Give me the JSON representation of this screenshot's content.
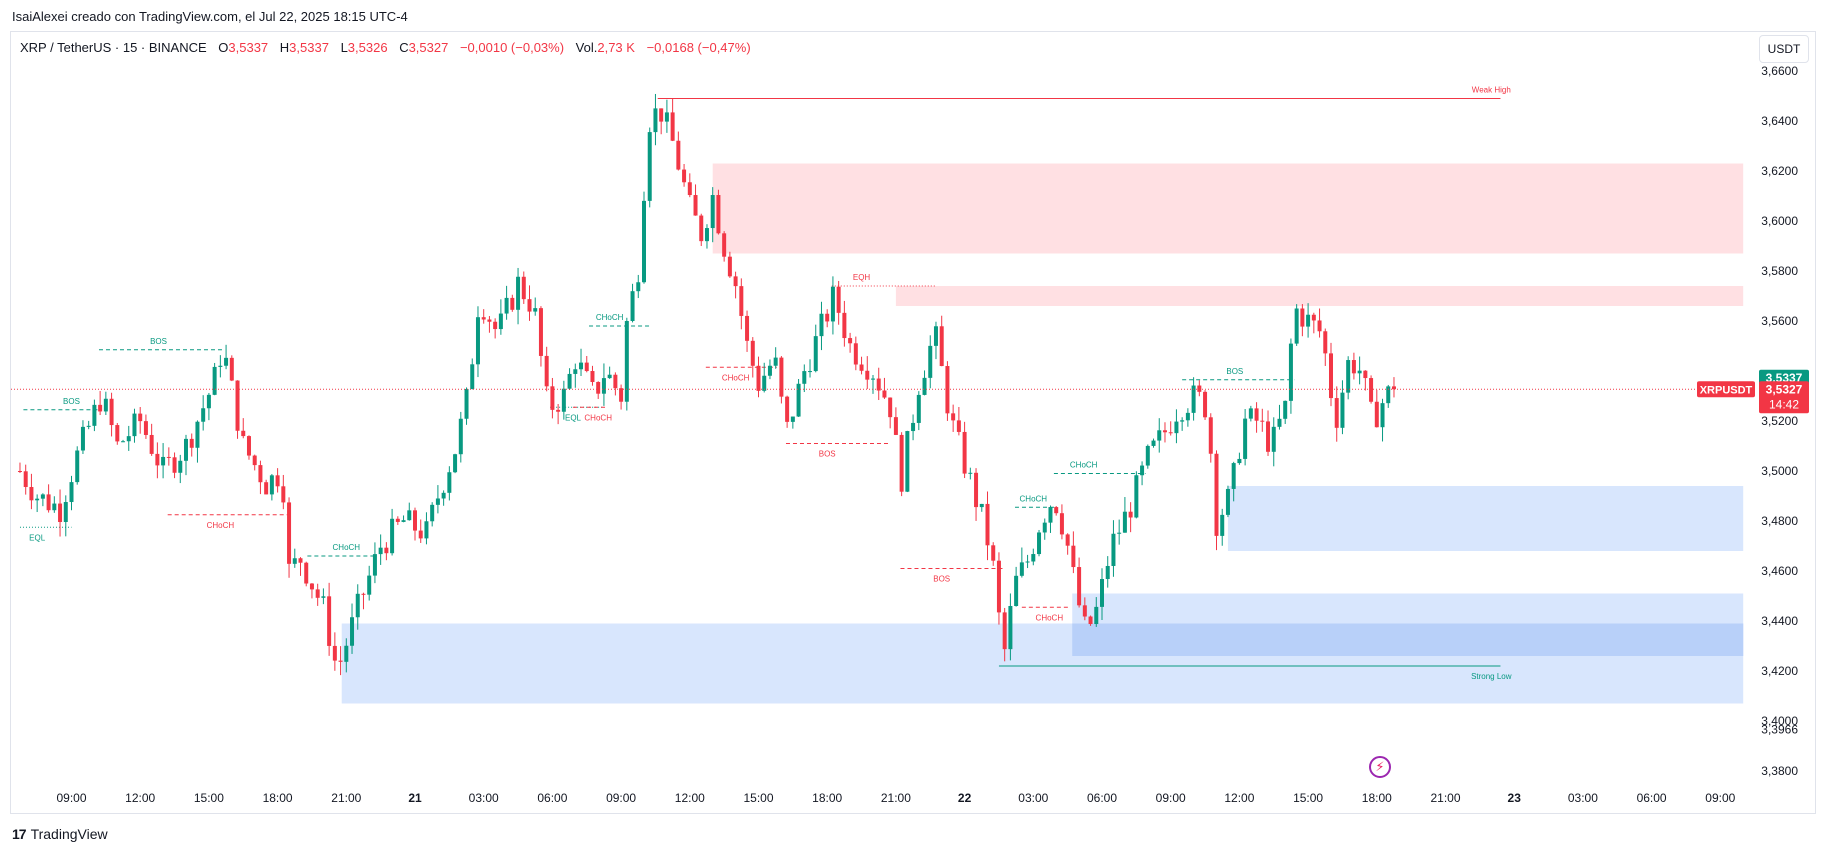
{
  "header": {
    "caption": "IsaiAlexei creado con TradingView.com, el Jul 22, 2025 18:15 UTC-4"
  },
  "legend": {
    "symbol": "XRP / TetherUS · 15 · BINANCE",
    "o_label": "O",
    "o_value": "3,5337",
    "h_label": "H",
    "h_value": "3,5337",
    "l_label": "L",
    "l_value": "3,5326",
    "c_label": "C",
    "c_value": "3,5327",
    "change": "−0,0010 (−0,03%)",
    "vol_label": "Vol.",
    "vol_value": "2,73 K",
    "vol_change": "−0,0168 (−0,47%)"
  },
  "currency_button": "USDT",
  "footer": {
    "logo": "17",
    "brand": "TradingView"
  },
  "colors": {
    "up": "#089981",
    "down": "#f23645",
    "supply_zone": "#ffe0e3",
    "demand_zone": "#d8e6fd",
    "demand_overlap": "#b8d0f9",
    "price_line": "#f23645",
    "axis_text": "#131722"
  },
  "chart_data": {
    "type": "candlestick",
    "title": "",
    "ylim": [
      3.375,
      3.6725
    ],
    "y_ticks": [
      "3,6600",
      "3,6400",
      "3,6200",
      "3,6000",
      "3,5800",
      "3,5600",
      "3,5200",
      "3,5000",
      "3,4800",
      "3,4600",
      "3,4400",
      "3,4200",
      "3,4000",
      "3,3966",
      "3,3800"
    ],
    "y_tick_values": [
      3.66,
      3.64,
      3.62,
      3.6,
      3.58,
      3.56,
      3.52,
      3.5,
      3.48,
      3.46,
      3.44,
      3.42,
      3.4,
      3.3966,
      3.38
    ],
    "x_ticks": [
      "09:00",
      "12:00",
      "15:00",
      "18:00",
      "21:00",
      "21",
      "03:00",
      "06:00",
      "09:00",
      "12:00",
      "15:00",
      "18:00",
      "21:00",
      "22",
      "03:00",
      "06:00",
      "09:00",
      "12:00",
      "15:00",
      "18:00",
      "21:00",
      "23",
      "03:00",
      "06:00",
      "09:00"
    ],
    "x_tick_hours": [
      9,
      12,
      15,
      18,
      21,
      24,
      27,
      30,
      33,
      36,
      39,
      42,
      45,
      48,
      51,
      54,
      57,
      60,
      63,
      66,
      69,
      72,
      75,
      78,
      81
    ],
    "candles_start_hour": 6.75,
    "candle_interval_hours": 0.25,
    "close_waypoints": [
      [
        6.75,
        3.5
      ],
      [
        7.5,
        3.49
      ],
      [
        8.5,
        3.485
      ],
      [
        9.2,
        3.505
      ],
      [
        10.3,
        3.53
      ],
      [
        11.0,
        3.51
      ],
      [
        12.0,
        3.52
      ],
      [
        13.0,
        3.5
      ],
      [
        14.0,
        3.51
      ],
      [
        15.2,
        3.535
      ],
      [
        15.6,
        3.55
      ],
      [
        16.5,
        3.51
      ],
      [
        17.5,
        3.495
      ],
      [
        18.2,
        3.5
      ],
      [
        18.5,
        3.46
      ],
      [
        19.0,
        3.465
      ],
      [
        20.0,
        3.445
      ],
      [
        20.6,
        3.42
      ],
      [
        21.5,
        3.445
      ],
      [
        22.5,
        3.47
      ],
      [
        23.5,
        3.48
      ],
      [
        24.5,
        3.475
      ],
      [
        25.0,
        3.49
      ],
      [
        25.8,
        3.51
      ],
      [
        26.3,
        3.53
      ],
      [
        26.8,
        3.57
      ],
      [
        27.6,
        3.555
      ],
      [
        28.5,
        3.575
      ],
      [
        29.2,
        3.565
      ],
      [
        29.8,
        3.525
      ],
      [
        30.5,
        3.53
      ],
      [
        31.0,
        3.545
      ],
      [
        31.8,
        3.53
      ],
      [
        32.3,
        3.54
      ],
      [
        33.0,
        3.53
      ],
      [
        33.3,
        3.565
      ],
      [
        33.7,
        3.575
      ],
      [
        34.2,
        3.64
      ],
      [
        34.7,
        3.645
      ],
      [
        35.3,
        3.63
      ],
      [
        36.0,
        3.605
      ],
      [
        36.5,
        3.595
      ],
      [
        37.0,
        3.61
      ],
      [
        37.5,
        3.59
      ],
      [
        38.0,
        3.575
      ],
      [
        38.5,
        3.55
      ],
      [
        39.0,
        3.535
      ],
      [
        39.7,
        3.545
      ],
      [
        40.2,
        3.515
      ],
      [
        41.0,
        3.54
      ],
      [
        42.3,
        3.57
      ],
      [
        43.0,
        3.55
      ],
      [
        44.0,
        3.54
      ],
      [
        44.8,
        3.525
      ],
      [
        45.2,
        3.495
      ],
      [
        46.0,
        3.535
      ],
      [
        46.7,
        3.555
      ],
      [
        47.4,
        3.52
      ],
      [
        48.1,
        3.5
      ],
      [
        48.8,
        3.48
      ],
      [
        49.2,
        3.465
      ],
      [
        49.7,
        3.425
      ],
      [
        50.2,
        3.455
      ],
      [
        50.8,
        3.465
      ],
      [
        51.3,
        3.48
      ],
      [
        51.9,
        3.49
      ],
      [
        52.4,
        3.475
      ],
      [
        52.9,
        3.45
      ],
      [
        53.3,
        3.435
      ],
      [
        53.8,
        3.445
      ],
      [
        54.4,
        3.47
      ],
      [
        55.2,
        3.485
      ],
      [
        56.0,
        3.505
      ],
      [
        56.7,
        3.515
      ],
      [
        57.3,
        3.525
      ],
      [
        58.1,
        3.53
      ],
      [
        58.6,
        3.525
      ],
      [
        59.0,
        3.48
      ],
      [
        59.6,
        3.49
      ],
      [
        60.2,
        3.52
      ],
      [
        60.8,
        3.52
      ],
      [
        61.4,
        3.51
      ],
      [
        62.0,
        3.525
      ],
      [
        62.4,
        3.565
      ],
      [
        63.0,
        3.56
      ],
      [
        63.6,
        3.555
      ],
      [
        64.2,
        3.52
      ],
      [
        64.8,
        3.545
      ],
      [
        65.3,
        3.54
      ],
      [
        65.8,
        3.52
      ],
      [
        66.4,
        3.53
      ],
      [
        66.75,
        3.5327
      ]
    ],
    "last_price": "3,5327",
    "last_price_high": "3,5337",
    "countdown": "14:42",
    "symbol_label": "XRPUSDT",
    "zones": [
      {
        "kind": "supply",
        "from_hour": 37.0,
        "to_hour": 82.0,
        "low": 3.587,
        "high": 3.623
      },
      {
        "kind": "supply",
        "from_hour": 45.0,
        "to_hour": 82.0,
        "low": 3.566,
        "high": 3.574
      },
      {
        "kind": "demand",
        "from_hour": 59.5,
        "to_hour": 82.0,
        "low": 3.468,
        "high": 3.494
      },
      {
        "kind": "demand",
        "from_hour": 52.7,
        "to_hour": 82.0,
        "low": 3.426,
        "high": 3.451
      },
      {
        "kind": "demand",
        "from_hour": 20.8,
        "to_hour": 82.0,
        "low": 3.407,
        "high": 3.439
      },
      {
        "kind": "demand_overlap",
        "from_hour": 52.7,
        "to_hour": 82.0,
        "low": 3.426,
        "high": 3.439
      }
    ],
    "structure_lines": [
      {
        "label": "Weak High",
        "color": "#f23645",
        "style": "solid",
        "y": 3.649,
        "from_hour": 34.6,
        "to_hour": 71.4,
        "label_hour": 71.0,
        "label_pos": "above"
      },
      {
        "label": "Strong Low",
        "color": "#089981",
        "style": "solid",
        "y": 3.422,
        "from_hour": 49.5,
        "to_hour": 71.4,
        "label_hour": 71.0,
        "label_pos": "below"
      },
      {
        "label": "EQL",
        "color": "#089981",
        "style": "dotted",
        "y": 3.4775,
        "from_hour": 6.75,
        "to_hour": 9.0,
        "label_hour": 7.5,
        "label_pos": "below"
      },
      {
        "label": "BOS",
        "color": "#089981",
        "style": "dashed",
        "y": 3.5245,
        "from_hour": 6.9,
        "to_hour": 10.2,
        "label_hour": 9.0,
        "label_pos": "above"
      },
      {
        "label": "BOS",
        "color": "#089981",
        "style": "dashed",
        "y": 3.5485,
        "from_hour": 10.2,
        "to_hour": 15.7,
        "label_hour": 12.8,
        "label_pos": "above"
      },
      {
        "label": "CHoCH",
        "color": "#f23645",
        "style": "dashed",
        "y": 3.4825,
        "from_hour": 13.2,
        "to_hour": 18.7,
        "label_hour": 15.5,
        "label_pos": "below"
      },
      {
        "label": "CHoCH",
        "color": "#089981",
        "style": "dashed",
        "y": 3.466,
        "from_hour": 19.3,
        "to_hour": 22.3,
        "label_hour": 21.0,
        "label_pos": "above"
      },
      {
        "label": "EQL",
        "color": "#089981",
        "style": "dotted",
        "y": 3.5255,
        "from_hour": 29.9,
        "to_hour": 32.2,
        "label_hour": 30.9,
        "label_pos": "below"
      },
      {
        "label": "CHoCH",
        "color": "#f23645",
        "style": "dashed",
        "y": 3.5255,
        "from_hour": 30.9,
        "to_hour": 32.3,
        "label_hour": 32.0,
        "label_pos": "below"
      },
      {
        "label": "CHoCH",
        "color": "#089981",
        "style": "dashed",
        "y": 3.558,
        "from_hour": 31.6,
        "to_hour": 34.3,
        "label_hour": 32.5,
        "label_pos": "above"
      },
      {
        "label": "CHoCH",
        "color": "#f23645",
        "style": "dashed",
        "y": 3.5415,
        "from_hour": 36.7,
        "to_hour": 39.8,
        "label_hour": 38.0,
        "label_pos": "below"
      },
      {
        "label": "EQH",
        "color": "#f23645",
        "style": "dotted",
        "y": 3.574,
        "from_hour": 42.2,
        "to_hour": 46.7,
        "label_hour": 43.5,
        "label_pos": "above"
      },
      {
        "label": "BOS",
        "color": "#f23645",
        "style": "dashed",
        "y": 3.511,
        "from_hour": 40.2,
        "to_hour": 44.7,
        "label_hour": 42.0,
        "label_pos": "below"
      },
      {
        "label": "BOS",
        "color": "#f23645",
        "style": "dashed",
        "y": 3.461,
        "from_hour": 45.2,
        "to_hour": 49.7,
        "label_hour": 47.0,
        "label_pos": "below"
      },
      {
        "label": "CHoCH",
        "color": "#089981",
        "style": "dashed",
        "y": 3.4855,
        "from_hour": 50.2,
        "to_hour": 52.0,
        "label_hour": 51.0,
        "label_pos": "above"
      },
      {
        "label": "CHoCH",
        "color": "#f23645",
        "style": "dashed",
        "y": 3.4455,
        "from_hour": 50.5,
        "to_hour": 52.6,
        "label_hour": 51.7,
        "label_pos": "below"
      },
      {
        "label": "CHoCH",
        "color": "#089981",
        "style": "dashed",
        "y": 3.499,
        "from_hour": 51.9,
        "to_hour": 55.9,
        "label_hour": 53.2,
        "label_pos": "above"
      },
      {
        "label": "BOS",
        "color": "#089981",
        "style": "dashed",
        "y": 3.5365,
        "from_hour": 57.5,
        "to_hour": 62.4,
        "label_hour": 59.8,
        "label_pos": "above"
      }
    ]
  }
}
